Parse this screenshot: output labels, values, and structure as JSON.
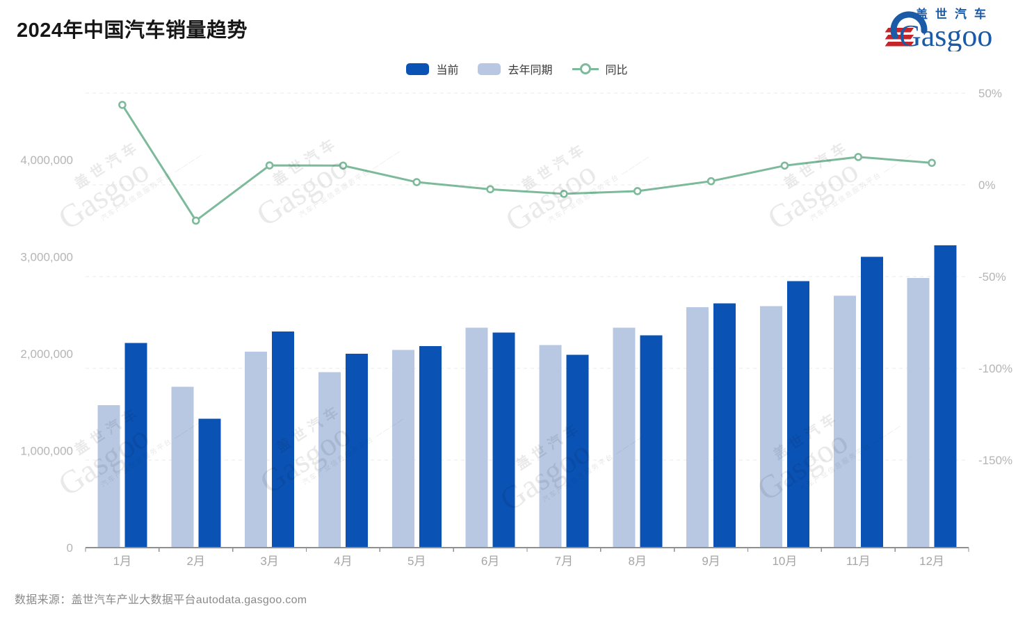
{
  "title": "2024年中国汽车销量趋势",
  "logo": {
    "chinese": "盖世汽车",
    "english": "Gasgoo"
  },
  "legend": {
    "items": [
      {
        "label": "当前",
        "type": "bar",
        "color": "#0a53b5"
      },
      {
        "label": "去年同期",
        "type": "bar",
        "color": "#b8c8e3"
      },
      {
        "label": "同比",
        "type": "line",
        "color": "#7cba9b"
      }
    ]
  },
  "watermark": {
    "chinese": "盖世汽车",
    "english": "Gasgoo",
    "tagline": "汽车产业信息服务平台 ————"
  },
  "source_text": "数据来源：盖世汽车产业大数据平台autodata.gasgoo.com",
  "chart_data": {
    "type": "bar",
    "title": "2024年中国汽车销量趋势",
    "categories": [
      "1月",
      "2月",
      "3月",
      "4月",
      "5月",
      "6月",
      "7月",
      "8月",
      "9月",
      "10月",
      "11月",
      "12月"
    ],
    "series": [
      {
        "name": "当前",
        "type": "bar",
        "axis": "left",
        "color": "#0a53b5",
        "values": [
          2110000,
          1330000,
          2230000,
          2000000,
          2080000,
          2220000,
          1990000,
          2190000,
          2520000,
          2750000,
          3000000,
          3120000
        ]
      },
      {
        "name": "去年同期",
        "type": "bar",
        "axis": "left",
        "color": "#b8c8e3",
        "values": [
          1470000,
          1660000,
          2020000,
          1810000,
          2040000,
          2270000,
          2090000,
          2270000,
          2480000,
          2490000,
          2600000,
          2780000
        ]
      },
      {
        "name": "同比",
        "type": "line",
        "axis": "right",
        "color": "#7cba9b",
        "values": [
          43.6,
          -19.5,
          10.6,
          10.5,
          1.5,
          -2.4,
          -4.9,
          -3.4,
          2.0,
          10.5,
          15.2,
          12.0
        ]
      }
    ],
    "left_axis": {
      "tick_labels": [
        "0",
        "1,000,000",
        "2,000,000",
        "3,000,000",
        "4,000,000"
      ],
      "tick_values": [
        0,
        1000000,
        2000000,
        3000000,
        4000000
      ],
      "min": 0
    },
    "right_axis": {
      "tick_labels": [
        "50%",
        "0%",
        "-50%",
        "-100%",
        "-150%"
      ],
      "tick_values": [
        50,
        0,
        -50,
        -100,
        -150
      ],
      "unit": "%"
    },
    "grid": {
      "horizontal_dashed": true,
      "aligned_to": "right_axis",
      "color": "#e9e9e9"
    },
    "legend_position": "top-center",
    "xlabel": "",
    "ylabel_left": "",
    "ylabel_right": ""
  }
}
